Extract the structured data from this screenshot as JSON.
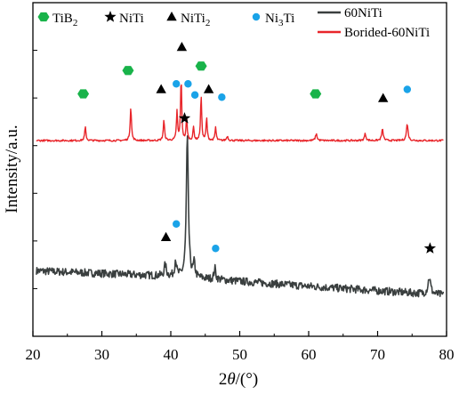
{
  "chart_data": {
    "type": "line",
    "xlabel": "2θ/(°)",
    "ylabel": "Intensity/a.u.",
    "xlim": [
      20,
      80
    ],
    "x_ticks": [
      20,
      30,
      40,
      50,
      60,
      70,
      80
    ],
    "y_ticks_labeled": false,
    "grid": false,
    "legend_position": "top",
    "phase_legend": [
      {
        "label": "TiB",
        "sub": "2",
        "marker": "hexagon",
        "color": "#19b34a"
      },
      {
        "label": "NiTi",
        "sub": "",
        "marker": "star",
        "color": "#000000"
      },
      {
        "label": "NiTi",
        "sub": "2",
        "marker": "triangle",
        "color": "#000000"
      },
      {
        "label": "Ni",
        "sub": "3",
        "suffix": "Ti",
        "marker": "circle",
        "color": "#1aa3e8"
      }
    ],
    "series": [
      {
        "name": "60NiTi",
        "color": "#3a3f3f",
        "baseline": [
          [
            20,
            5.9
          ],
          [
            40,
            5.4
          ],
          [
            60,
            4.5
          ],
          [
            80,
            3.7
          ]
        ],
        "peaks": [
          {
            "x": 39.2,
            "height": 1.0,
            "width": 0.35
          },
          {
            "x": 40.7,
            "height": 1.5,
            "width": 0.3
          },
          {
            "x": 42.4,
            "height": 12.6,
            "width": 0.35
          },
          {
            "x": 43.4,
            "height": 1.2,
            "width": 0.3
          },
          {
            "x": 46.4,
            "height": 1.0,
            "width": 0.3
          },
          {
            "x": 77.5,
            "height": 1.5,
            "width": 0.45
          }
        ],
        "noise": 0.35
      },
      {
        "name": "Borided-60NiTi",
        "color": "#e8252a",
        "baseline": [
          [
            20,
            17.6
          ],
          [
            80,
            17.6
          ]
        ],
        "peaks": [
          {
            "x": 27.6,
            "height": 1.2,
            "width": 0.22
          },
          {
            "x": 34.2,
            "height": 3.0,
            "width": 0.22
          },
          {
            "x": 39.0,
            "height": 1.8,
            "width": 0.22
          },
          {
            "x": 40.9,
            "height": 2.6,
            "width": 0.2
          },
          {
            "x": 41.5,
            "height": 5.6,
            "width": 0.2
          },
          {
            "x": 42.3,
            "height": 2.0,
            "width": 0.2
          },
          {
            "x": 43.3,
            "height": 1.2,
            "width": 0.2
          },
          {
            "x": 44.4,
            "height": 4.0,
            "width": 0.2
          },
          {
            "x": 45.2,
            "height": 2.0,
            "width": 0.2
          },
          {
            "x": 46.5,
            "height": 1.2,
            "width": 0.2
          },
          {
            "x": 48.2,
            "height": 0.4,
            "width": 0.25
          },
          {
            "x": 61.1,
            "height": 0.6,
            "width": 0.28
          },
          {
            "x": 68.2,
            "height": 0.6,
            "width": 0.28
          },
          {
            "x": 70.7,
            "height": 1.0,
            "width": 0.28
          },
          {
            "x": 74.3,
            "height": 1.5,
            "width": 0.28
          }
        ],
        "noise": 0.08
      }
    ],
    "markers": [
      {
        "phase": "TiB2",
        "marker": "hexagon",
        "color": "#19b34a",
        "x": 27.3,
        "y": 21.8
      },
      {
        "phase": "TiB2",
        "marker": "hexagon",
        "color": "#19b34a",
        "x": 33.8,
        "y": 23.9
      },
      {
        "phase": "TiB2",
        "marker": "hexagon",
        "color": "#19b34a",
        "x": 44.4,
        "y": 24.3
      },
      {
        "phase": "TiB2",
        "marker": "hexagon",
        "color": "#19b34a",
        "x": 61.0,
        "y": 21.8
      },
      {
        "phase": "NiTi",
        "marker": "star",
        "color": "#000000",
        "x": 42.0,
        "y": 19.6
      },
      {
        "phase": "NiTi",
        "marker": "star",
        "color": "#000000",
        "x": 77.6,
        "y": 7.9
      },
      {
        "phase": "NiTi2",
        "marker": "triangle",
        "color": "#000000",
        "x": 38.6,
        "y": 22.2
      },
      {
        "phase": "NiTi2",
        "marker": "triangle",
        "color": "#000000",
        "x": 41.6,
        "y": 26.0
      },
      {
        "phase": "NiTi2",
        "marker": "triangle",
        "color": "#000000",
        "x": 45.5,
        "y": 22.2
      },
      {
        "phase": "NiTi2",
        "marker": "triangle",
        "color": "#000000",
        "x": 70.8,
        "y": 21.4
      },
      {
        "phase": "NiTi2",
        "marker": "triangle",
        "color": "#000000",
        "x": 39.3,
        "y": 8.9
      },
      {
        "phase": "Ni3Ti",
        "marker": "circle",
        "color": "#1aa3e8",
        "x": 40.8,
        "y": 22.7
      },
      {
        "phase": "Ni3Ti",
        "marker": "circle",
        "color": "#1aa3e8",
        "x": 42.5,
        "y": 22.7
      },
      {
        "phase": "Ni3Ti",
        "marker": "circle",
        "color": "#1aa3e8",
        "x": 43.5,
        "y": 21.7
      },
      {
        "phase": "Ni3Ti",
        "marker": "circle",
        "color": "#1aa3e8",
        "x": 47.4,
        "y": 21.5
      },
      {
        "phase": "Ni3Ti",
        "marker": "circle",
        "color": "#1aa3e8",
        "x": 74.3,
        "y": 22.2
      },
      {
        "phase": "Ni3Ti",
        "marker": "circle",
        "color": "#1aa3e8",
        "x": 40.8,
        "y": 10.1
      },
      {
        "phase": "Ni3Ti",
        "marker": "circle",
        "color": "#1aa3e8",
        "x": 46.5,
        "y": 7.9
      }
    ]
  }
}
